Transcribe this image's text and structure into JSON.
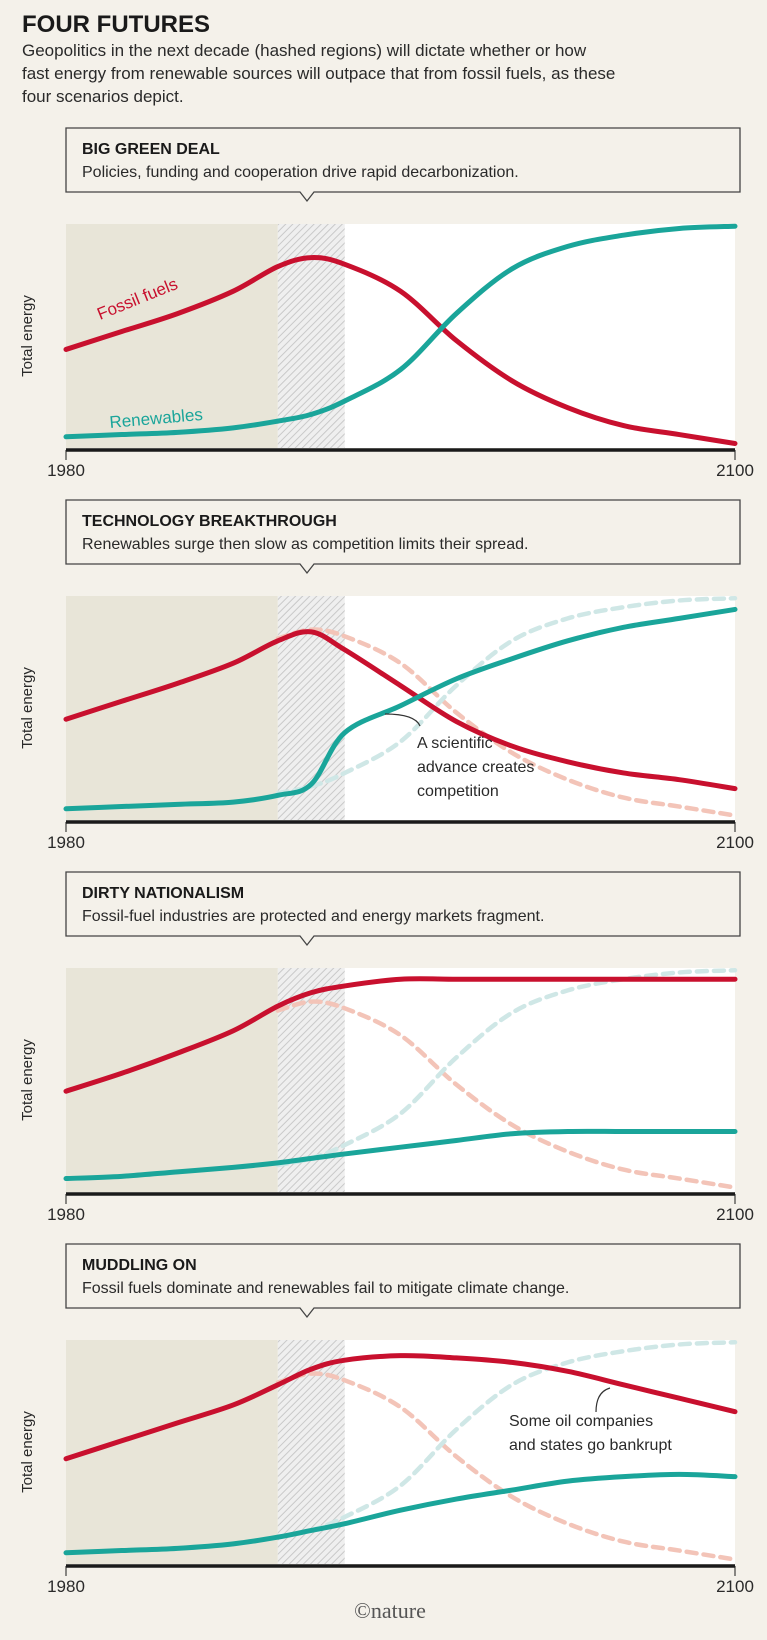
{
  "header": {
    "title": "FOUR FUTURES",
    "subtitle_lines": [
      "Geopolitics in the next decade (hashed regions) will dictate whether or how",
      "fast energy from renewable sources will outpace that from fossil fuels, as these",
      "four scenarios depict."
    ]
  },
  "colors": {
    "background": "#f4f1ea",
    "history_shade": "#e8e5d8",
    "fossil": "#c8102e",
    "renewables": "#1aa59a",
    "fossil_reference": "#f3c4b8",
    "renewables_reference": "#cfe7e6",
    "hatch": "#c9c9c9"
  },
  "footer": {
    "credit": "©nature"
  },
  "chart_data": [
    {
      "type": "line",
      "title": "BIG GREEN DEAL",
      "description": "Policies, funding and cooperation drive rapid decarbonization.",
      "ylabel": "Total energy",
      "xlim": [
        1980,
        2100
      ],
      "x_tick_labels": [
        "1980",
        "2100"
      ],
      "hashed_region": [
        2018,
        2030
      ],
      "history_region": [
        1980,
        2018
      ],
      "x": [
        1980,
        1990,
        2000,
        2010,
        2018,
        2024,
        2030,
        2040,
        2050,
        2060,
        2070,
        2080,
        2090,
        2100
      ],
      "series": [
        {
          "name": "Fossil fuels",
          "color": "#c8102e",
          "values": [
            44,
            52,
            60,
            70,
            81,
            85,
            82,
            70,
            48,
            30,
            18,
            10,
            6,
            2
          ]
        },
        {
          "name": "Renewables",
          "color": "#1aa59a",
          "values": [
            5,
            6,
            7,
            9,
            12,
            15,
            21,
            35,
            60,
            80,
            90,
            95,
            98,
            99
          ]
        }
      ],
      "reference_series": [],
      "annotations": []
    },
    {
      "type": "line",
      "title": "TECHNOLOGY BREAKTHROUGH",
      "description": "Renewables surge then slow as competition limits their spread.",
      "ylabel": "Total energy",
      "xlim": [
        1980,
        2100
      ],
      "x_tick_labels": [
        "1980",
        "2100"
      ],
      "hashed_region": [
        2018,
        2030
      ],
      "history_region": [
        1980,
        2018
      ],
      "x": [
        1980,
        1990,
        2000,
        2010,
        2018,
        2024,
        2030,
        2040,
        2050,
        2060,
        2070,
        2080,
        2090,
        2100
      ],
      "series": [
        {
          "color": "#c8102e",
          "values": [
            45,
            53,
            61,
            70,
            80,
            84,
            76,
            60,
            44,
            33,
            26,
            21,
            18,
            14
          ]
        },
        {
          "color": "#1aa59a",
          "values": [
            5,
            6,
            7,
            8,
            11,
            16,
            39,
            51,
            63,
            72,
            80,
            86,
            90,
            94
          ]
        }
      ],
      "reference_series": [
        {
          "color": "#f3c4b8",
          "values": [
            44,
            52,
            60,
            70,
            81,
            85,
            82,
            70,
            48,
            30,
            18,
            10,
            6,
            2
          ]
        },
        {
          "color": "#cfe7e6",
          "values": [
            5,
            6,
            7,
            9,
            12,
            15,
            21,
            35,
            60,
            80,
            90,
            95,
            98,
            99
          ]
        }
      ],
      "annotations": [
        {
          "lines": [
            "A scientific",
            "advance creates",
            "competition"
          ]
        }
      ]
    },
    {
      "type": "line",
      "title": "DIRTY NATIONALISM",
      "description": "Fossil-fuel industries are protected and energy markets fragment.",
      "ylabel": "Total energy",
      "xlim": [
        1980,
        2100
      ],
      "x_tick_labels": [
        "1980",
        "2100"
      ],
      "hashed_region": [
        2018,
        2030
      ],
      "history_region": [
        1980,
        2018
      ],
      "x": [
        1980,
        1990,
        2000,
        2010,
        2018,
        2024,
        2030,
        2040,
        2050,
        2060,
        2070,
        2080,
        2090,
        2100
      ],
      "series": [
        {
          "color": "#c8102e",
          "values": [
            45,
            53,
            62,
            72,
            83,
            89,
            92,
            95,
            95,
            95,
            95,
            95,
            95,
            95
          ]
        },
        {
          "color": "#1aa59a",
          "values": [
            6,
            7,
            9,
            11,
            13,
            15,
            17,
            20,
            23,
            26,
            27,
            27,
            27,
            27
          ]
        }
      ],
      "reference_series": [
        {
          "color": "#f3c4b8",
          "values": [
            44,
            52,
            60,
            70,
            81,
            85,
            82,
            70,
            48,
            30,
            18,
            10,
            6,
            2
          ]
        },
        {
          "color": "#cfe7e6",
          "values": [
            5,
            6,
            7,
            9,
            12,
            15,
            21,
            35,
            60,
            80,
            90,
            95,
            98,
            99
          ]
        }
      ],
      "annotations": []
    },
    {
      "type": "line",
      "title": "MUDDLING ON",
      "description": "Fossil fuels dominate and renewables fail to mitigate climate change.",
      "ylabel": "Total energy",
      "xlim": [
        1980,
        2100
      ],
      "x_tick_labels": [
        "1980",
        "2100"
      ],
      "hashed_region": [
        2018,
        2030
      ],
      "history_region": [
        1980,
        2018
      ],
      "x": [
        1980,
        1990,
        2000,
        2010,
        2018,
        2024,
        2030,
        2040,
        2050,
        2060,
        2070,
        2080,
        2090,
        2100
      ],
      "series": [
        {
          "color": "#c8102e",
          "values": [
            47,
            55,
            63,
            71,
            80,
            87,
            91,
            93,
            92,
            90,
            86,
            80,
            74,
            68
          ]
        },
        {
          "color": "#1aa59a",
          "values": [
            5,
            6,
            7,
            9,
            12,
            15,
            18,
            24,
            29,
            33,
            37,
            39,
            40,
            39
          ]
        }
      ],
      "reference_series": [
        {
          "color": "#f3c4b8",
          "values": [
            44,
            52,
            60,
            70,
            81,
            85,
            82,
            70,
            48,
            30,
            18,
            10,
            6,
            2
          ]
        },
        {
          "color": "#cfe7e6",
          "values": [
            5,
            6,
            7,
            9,
            12,
            15,
            21,
            35,
            60,
            80,
            90,
            95,
            98,
            99
          ]
        }
      ],
      "annotations": [
        {
          "lines": [
            "Some oil companies",
            "and states go bankrupt"
          ]
        }
      ]
    }
  ]
}
